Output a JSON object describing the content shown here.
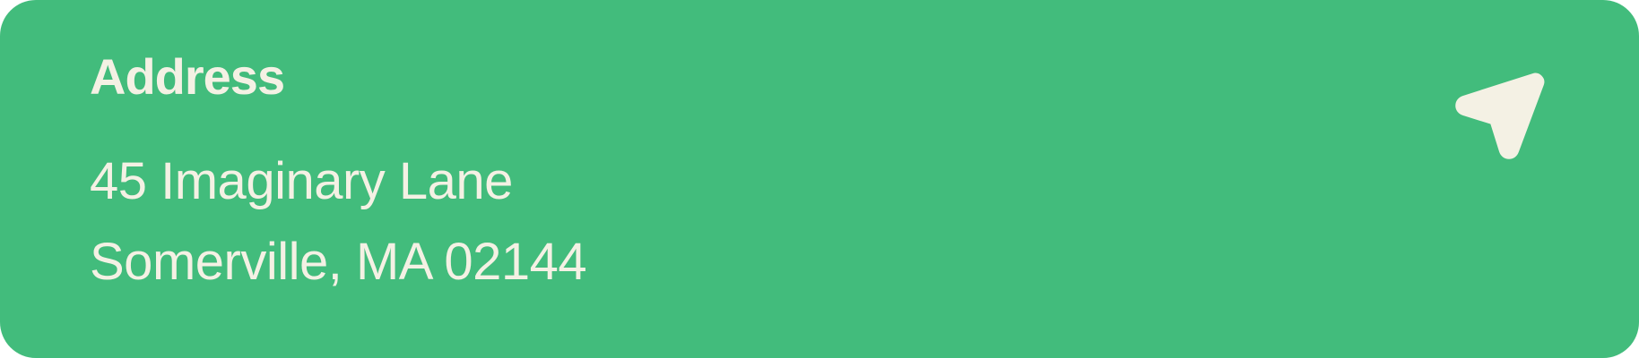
{
  "card": {
    "title": "Address",
    "address_lines": [
      "45 Imaginary Lane",
      "Somerville, MA 02144"
    ],
    "icon": "navigation-arrow-icon"
  },
  "colors": {
    "background": "#42bc7c",
    "text": "#f4f1e4"
  }
}
